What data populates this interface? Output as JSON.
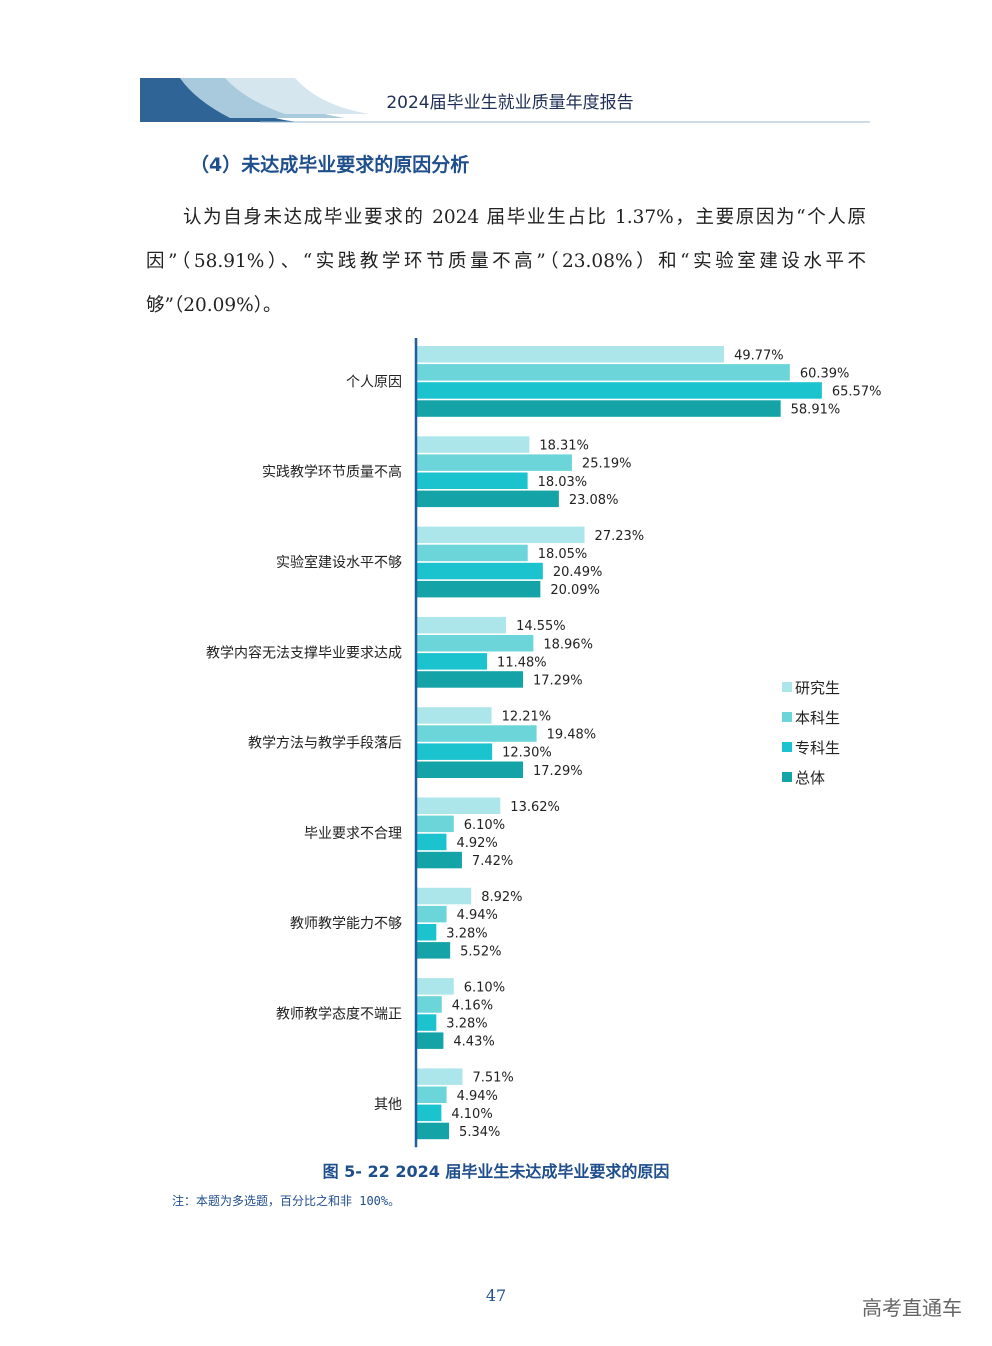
{
  "header": {
    "title": "2024届毕业生就业质量年度报告"
  },
  "section": {
    "title": "（4）未达成毕业要求的原因分析",
    "paragraph": "认为自身未达成毕业要求的 2024 届毕业生占比 1.37%，主要原因为“个人原因”（58.91%）、“实践教学环节质量不高”（23.08%）和“实验室建设水平不够”（20.09%）。"
  },
  "colors": {
    "研究生": "#ade6ea",
    "本科生": "#6cd5da",
    "专科生": "#1bc3cf",
    "总体": "#14a3a6",
    "axis": "#1f5f9b"
  },
  "chart_data": {
    "type": "bar",
    "orientation": "horizontal",
    "categories": [
      "个人原因",
      "实践教学环节质量不高",
      "实验室建设水平不够",
      "教学内容无法支撑毕业要求达成",
      "教学方法与教学手段落后",
      "毕业要求不合理",
      "教师教学能力不够",
      "教师教学态度不端正",
      "其他"
    ],
    "series": [
      {
        "name": "研究生",
        "values": [
          49.77,
          18.31,
          27.23,
          14.55,
          12.21,
          13.62,
          8.92,
          6.1,
          7.51
        ]
      },
      {
        "name": "本科生",
        "values": [
          60.39,
          25.19,
          18.05,
          18.96,
          19.48,
          6.1,
          4.94,
          4.16,
          4.94
        ]
      },
      {
        "name": "专科生",
        "values": [
          65.57,
          18.03,
          20.49,
          11.48,
          12.3,
          4.92,
          3.28,
          3.28,
          4.1
        ]
      },
      {
        "name": "总体",
        "values": [
          58.91,
          23.08,
          20.09,
          17.29,
          17.29,
          7.42,
          5.52,
          4.43,
          5.34
        ]
      }
    ],
    "value_format": "percent_2dp",
    "xlim": [
      0,
      70
    ],
    "grid": false,
    "legend_position": "right",
    "title": "图 5- 22  2024 届毕业生未达成毕业要求的原因",
    "note": "注：本题为多选题，百分比之和非 100%。"
  },
  "footer": {
    "page_number": "47",
    "watermark": "高考直通车"
  }
}
